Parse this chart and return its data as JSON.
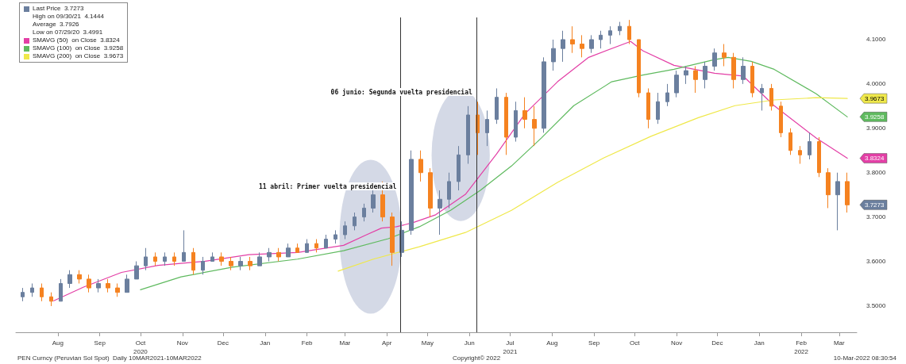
{
  "chart_data": {
    "type": "candlestick",
    "series": [
      {
        "type": "candlestick",
        "name": "Last Price  3.7273",
        "color": "#6b7f9e",
        "x": [
          "2020-07-06",
          "2020-07-13",
          "2020-07-20",
          "2020-07-27",
          "2020-08-03",
          "2020-08-10",
          "2020-08-17",
          "2020-08-24",
          "2020-08-31",
          "2020-09-07",
          "2020-09-14",
          "2020-09-21",
          "2020-09-28",
          "2020-10-05",
          "2020-10-12",
          "2020-10-19",
          "2020-10-26",
          "2020-11-02",
          "2020-11-09",
          "2020-11-16",
          "2020-11-23",
          "2020-11-30",
          "2020-12-07",
          "2020-12-14",
          "2020-12-21",
          "2020-12-28",
          "2021-01-04",
          "2021-01-11",
          "2021-01-18",
          "2021-01-25",
          "2021-02-01",
          "2021-02-08",
          "2021-02-15",
          "2021-02-22",
          "2021-03-01",
          "2021-03-08",
          "2021-03-15",
          "2021-03-22",
          "2021-03-29",
          "2021-04-05",
          "2021-04-12",
          "2021-04-19",
          "2021-04-26",
          "2021-05-03",
          "2021-05-10",
          "2021-05-17",
          "2021-05-24",
          "2021-05-31",
          "2021-06-07",
          "2021-06-14",
          "2021-06-21",
          "2021-06-28",
          "2021-07-05",
          "2021-07-12",
          "2021-07-19",
          "2021-07-26",
          "2021-08-02",
          "2021-08-09",
          "2021-08-16",
          "2021-08-23",
          "2021-08-30",
          "2021-09-06",
          "2021-09-13",
          "2021-09-20",
          "2021-09-27",
          "2021-10-04",
          "2021-10-11",
          "2021-10-18",
          "2021-10-25",
          "2021-11-01",
          "2021-11-08",
          "2021-11-15",
          "2021-11-22",
          "2021-11-29",
          "2021-12-06",
          "2021-12-13",
          "2021-12-20",
          "2021-12-27",
          "2022-01-03",
          "2022-01-10",
          "2022-01-17",
          "2022-01-24",
          "2022-01-31",
          "2022-02-07",
          "2022-02-14",
          "2022-02-21",
          "2022-02-28",
          "2022-03-07"
        ],
        "ohlc": [
          [
            3.52,
            3.54,
            3.51,
            3.53
          ],
          [
            3.53,
            3.55,
            3.52,
            3.54
          ],
          [
            3.54,
            3.55,
            3.51,
            3.52
          ],
          [
            3.52,
            3.53,
            3.4991,
            3.51
          ],
          [
            3.51,
            3.56,
            3.51,
            3.55
          ],
          [
            3.55,
            3.58,
            3.54,
            3.57
          ],
          [
            3.57,
            3.58,
            3.55,
            3.56
          ],
          [
            3.56,
            3.57,
            3.53,
            3.54
          ],
          [
            3.54,
            3.56,
            3.53,
            3.55
          ],
          [
            3.55,
            3.56,
            3.53,
            3.54
          ],
          [
            3.54,
            3.55,
            3.52,
            3.53
          ],
          [
            3.53,
            3.57,
            3.53,
            3.56
          ],
          [
            3.56,
            3.6,
            3.56,
            3.59
          ],
          [
            3.59,
            3.63,
            3.58,
            3.61
          ],
          [
            3.61,
            3.62,
            3.59,
            3.6
          ],
          [
            3.6,
            3.62,
            3.59,
            3.61
          ],
          [
            3.61,
            3.62,
            3.59,
            3.6
          ],
          [
            3.6,
            3.67,
            3.6,
            3.62
          ],
          [
            3.62,
            3.63,
            3.57,
            3.58
          ],
          [
            3.58,
            3.61,
            3.57,
            3.6
          ],
          [
            3.6,
            3.62,
            3.6,
            3.61
          ],
          [
            3.61,
            3.62,
            3.59,
            3.6
          ],
          [
            3.6,
            3.61,
            3.58,
            3.59
          ],
          [
            3.59,
            3.61,
            3.58,
            3.6
          ],
          [
            3.6,
            3.61,
            3.58,
            3.59
          ],
          [
            3.59,
            3.62,
            3.59,
            3.61
          ],
          [
            3.61,
            3.63,
            3.6,
            3.62
          ],
          [
            3.62,
            3.63,
            3.6,
            3.61
          ],
          [
            3.61,
            3.64,
            3.61,
            3.63
          ],
          [
            3.63,
            3.64,
            3.62,
            3.62
          ],
          [
            3.62,
            3.65,
            3.62,
            3.64
          ],
          [
            3.64,
            3.65,
            3.62,
            3.63
          ],
          [
            3.63,
            3.66,
            3.63,
            3.65
          ],
          [
            3.65,
            3.67,
            3.64,
            3.66
          ],
          [
            3.66,
            3.69,
            3.65,
            3.68
          ],
          [
            3.68,
            3.71,
            3.67,
            3.7
          ],
          [
            3.7,
            3.73,
            3.69,
            3.72
          ],
          [
            3.72,
            3.76,
            3.71,
            3.75
          ],
          [
            3.75,
            3.78,
            3.69,
            3.7
          ],
          [
            3.7,
            3.71,
            3.59,
            3.62
          ],
          [
            3.62,
            3.69,
            3.61,
            3.67
          ],
          [
            3.67,
            3.85,
            3.66,
            3.83
          ],
          [
            3.83,
            3.85,
            3.78,
            3.8
          ],
          [
            3.8,
            3.81,
            3.7,
            3.72
          ],
          [
            3.72,
            3.76,
            3.66,
            3.74
          ],
          [
            3.74,
            3.8,
            3.72,
            3.78
          ],
          [
            3.78,
            3.86,
            3.76,
            3.84
          ],
          [
            3.84,
            3.95,
            3.82,
            3.93
          ],
          [
            3.93,
            3.96,
            3.84,
            3.89
          ],
          [
            3.89,
            3.94,
            3.86,
            3.92
          ],
          [
            3.92,
            3.99,
            3.91,
            3.97
          ],
          [
            3.97,
            3.98,
            3.84,
            3.88
          ],
          [
            3.88,
            3.96,
            3.87,
            3.94
          ],
          [
            3.94,
            3.97,
            3.9,
            3.92
          ],
          [
            3.92,
            3.95,
            3.86,
            3.9
          ],
          [
            3.9,
            4.06,
            3.89,
            4.05
          ],
          [
            4.05,
            4.1,
            4.03,
            4.08
          ],
          [
            4.08,
            4.12,
            4.05,
            4.1
          ],
          [
            4.1,
            4.13,
            4.07,
            4.09
          ],
          [
            4.09,
            4.11,
            4.06,
            4.08
          ],
          [
            4.08,
            4.11,
            4.07,
            4.1
          ],
          [
            4.1,
            4.12,
            4.08,
            4.11
          ],
          [
            4.11,
            4.13,
            4.09,
            4.12
          ],
          [
            4.12,
            4.14,
            4.11,
            4.13
          ],
          [
            4.13,
            4.1444,
            4.09,
            4.1
          ],
          [
            4.1,
            4.1,
            3.97,
            3.98
          ],
          [
            3.98,
            3.99,
            3.9,
            3.92
          ],
          [
            3.92,
            3.98,
            3.91,
            3.96
          ],
          [
            3.96,
            4.0,
            3.95,
            3.98
          ],
          [
            3.98,
            4.03,
            3.97,
            4.02
          ],
          [
            4.02,
            4.04,
            4.0,
            4.03
          ],
          [
            4.03,
            4.04,
            3.98,
            4.01
          ],
          [
            4.01,
            4.05,
            3.99,
            4.04
          ],
          [
            4.04,
            4.08,
            4.03,
            4.07
          ],
          [
            4.07,
            4.09,
            4.04,
            4.06
          ],
          [
            4.06,
            4.07,
            3.99,
            4.01
          ],
          [
            4.01,
            4.06,
            4.0,
            4.04
          ],
          [
            4.04,
            4.05,
            3.97,
            3.98
          ],
          [
            3.98,
            4.0,
            3.94,
            3.99
          ],
          [
            3.99,
            4.0,
            3.94,
            3.95
          ],
          [
            3.95,
            3.96,
            3.88,
            3.89
          ],
          [
            3.89,
            3.9,
            3.84,
            3.85
          ],
          [
            3.85,
            3.86,
            3.82,
            3.84
          ],
          [
            3.84,
            3.89,
            3.83,
            3.87
          ],
          [
            3.87,
            3.88,
            3.79,
            3.8
          ],
          [
            3.8,
            3.81,
            3.72,
            3.75
          ],
          [
            3.75,
            3.8,
            3.67,
            3.78
          ],
          [
            3.78,
            3.8,
            3.71,
            3.7273
          ]
        ],
        "colors": [
          "#6b7f9e",
          "#6b7f9e",
          "#f58220",
          "#f58220",
          "#6b7f9e",
          "#6b7f9e",
          "#f58220",
          "#f58220",
          "#6b7f9e",
          "#f58220",
          "#f58220",
          "#6b7f9e",
          "#6b7f9e",
          "#6b7f9e",
          "#f58220",
          "#6b7f9e",
          "#f58220",
          "#6b7f9e",
          "#f58220",
          "#6b7f9e",
          "#6b7f9e",
          "#f58220",
          "#f58220",
          "#6b7f9e",
          "#f58220",
          "#6b7f9e",
          "#6b7f9e",
          "#f58220",
          "#6b7f9e",
          "#f58220",
          "#6b7f9e",
          "#f58220",
          "#6b7f9e",
          "#6b7f9e",
          "#6b7f9e",
          "#6b7f9e",
          "#6b7f9e",
          "#6b7f9e",
          "#f58220",
          "#f58220",
          "#6b7f9e",
          "#6b7f9e",
          "#f58220",
          "#f58220",
          "#6b7f9e",
          "#6b7f9e",
          "#6b7f9e",
          "#6b7f9e",
          "#f58220",
          "#6b7f9e",
          "#6b7f9e",
          "#f58220",
          "#6b7f9e",
          "#f58220",
          "#f58220",
          "#6b7f9e",
          "#6b7f9e",
          "#6b7f9e",
          "#f58220",
          "#f58220",
          "#6b7f9e",
          "#6b7f9e",
          "#6b7f9e",
          "#6b7f9e",
          "#f58220",
          "#f58220",
          "#f58220",
          "#6b7f9e",
          "#6b7f9e",
          "#6b7f9e",
          "#6b7f9e",
          "#f58220",
          "#6b7f9e",
          "#6b7f9e",
          "#f58220",
          "#f58220",
          "#6b7f9e",
          "#f58220",
          "#6b7f9e",
          "#f58220",
          "#f58220",
          "#f58220",
          "#f58220",
          "#6b7f9e",
          "#f58220",
          "#f58220",
          "#6b7f9e",
          "#f58220"
        ]
      },
      {
        "type": "line",
        "name": "SMAVG (50)  on Close  3.8324",
        "color": "#e33fa6",
        "x": [
          "2020-07-29",
          "2020-08-20",
          "2020-09-17",
          "2020-10-14",
          "2020-11-17",
          "2020-12-20",
          "2021-01-25",
          "2021-02-28",
          "2021-03-17",
          "2021-03-28",
          "2021-04-08",
          "2021-04-20",
          "2021-05-07",
          "2021-05-29",
          "2021-06-21",
          "2021-07-12",
          "2021-08-05",
          "2021-08-28",
          "2021-09-28",
          "2021-10-07",
          "2021-10-30",
          "2021-11-29",
          "2021-12-20",
          "2022-01-12",
          "2022-02-12",
          "2022-03-07"
        ],
        "values": [
          3.511,
          3.542,
          3.575,
          3.591,
          3.6,
          3.615,
          3.62,
          3.636,
          3.66,
          3.675,
          3.678,
          3.687,
          3.705,
          3.751,
          3.842,
          3.933,
          4.005,
          4.06,
          4.096,
          4.075,
          4.042,
          4.024,
          4.018,
          3.951,
          3.878,
          3.8324
        ]
      },
      {
        "type": "line",
        "name": "SMAVG (100)  on Close  3.9258",
        "color": "#5fba5f",
        "x": [
          "2020-10-01",
          "2020-10-31",
          "2020-12-08",
          "2021-01-25",
          "2021-02-28",
          "2021-04-02",
          "2021-04-25",
          "2021-05-18",
          "2021-06-09",
          "2021-07-02",
          "2021-07-24",
          "2021-08-17",
          "2021-09-14",
          "2021-10-07",
          "2021-10-30",
          "2021-11-29",
          "2021-12-09",
          "2021-12-26",
          "2022-01-12",
          "2022-02-12",
          "2022-03-07"
        ],
        "values": [
          3.536,
          3.565,
          3.587,
          3.605,
          3.624,
          3.651,
          3.678,
          3.715,
          3.76,
          3.815,
          3.878,
          3.951,
          4.005,
          4.02,
          4.033,
          4.055,
          4.06,
          4.051,
          4.033,
          3.978,
          3.9258
        ]
      },
      {
        "type": "line",
        "name": "SMAVG (200)  on Close  3.9673",
        "color": "#efe84a",
        "x": [
          "2021-02-24",
          "2021-03-22",
          "2021-04-25",
          "2021-05-29",
          "2021-07-02",
          "2021-08-05",
          "2021-09-08",
          "2021-10-13",
          "2021-11-17",
          "2021-12-14",
          "2022-01-12",
          "2022-02-12",
          "2022-03-07"
        ],
        "values": [
          3.578,
          3.605,
          3.633,
          3.665,
          3.715,
          3.778,
          3.833,
          3.882,
          3.924,
          3.951,
          3.964,
          3.969,
          3.9673
        ]
      }
    ],
    "xlim": [
      "2020-07-01",
      "2022-03-14"
    ],
    "xticks": [
      {
        "value": "2020-08-01",
        "label": "Aug"
      },
      {
        "value": "2020-09-01",
        "label": "Sep"
      },
      {
        "value": "2020-10-01",
        "label": "Oct\n2020"
      },
      {
        "value": "2020-11-01",
        "label": "Nov"
      },
      {
        "value": "2020-12-01",
        "label": "Dec"
      },
      {
        "value": "2021-01-01",
        "label": "Jan"
      },
      {
        "value": "2021-02-01",
        "label": "Feb"
      },
      {
        "value": "2021-03-01",
        "label": "Mar"
      },
      {
        "value": "2021-04-01",
        "label": "Apr"
      },
      {
        "value": "2021-05-01",
        "label": "May"
      },
      {
        "value": "2021-06-01",
        "label": "Jun"
      },
      {
        "value": "2021-07-01",
        "label": "Jul\n2021"
      },
      {
        "value": "2021-08-01",
        "label": "Aug"
      },
      {
        "value": "2021-09-01",
        "label": "Sep"
      },
      {
        "value": "2021-10-01",
        "label": "Oct"
      },
      {
        "value": "2021-11-01",
        "label": "Nov"
      },
      {
        "value": "2021-12-01",
        "label": "Dec"
      },
      {
        "value": "2022-01-01",
        "label": "Jan"
      },
      {
        "value": "2022-02-01",
        "label": "Feb\n2022"
      },
      {
        "value": "2022-03-01",
        "label": "Mar"
      }
    ],
    "ylim": [
      3.44,
      4.15
    ],
    "yticks": [
      {
        "value": 3.5,
        "label": "3.5000"
      },
      {
        "value": 3.6,
        "label": "3.6000"
      },
      {
        "value": 3.7,
        "label": "3.7000"
      },
      {
        "value": 3.8,
        "label": "3.8000"
      },
      {
        "value": 3.9,
        "label": "3.9000"
      },
      {
        "value": 4.0,
        "label": "4.0000"
      },
      {
        "value": 4.1,
        "label": "4.1000"
      }
    ],
    "ref_lines": [
      {
        "axis": "x",
        "value": "2021-04-11",
        "label": "11 abril: Primer vuelta presidencial",
        "color": "#333333"
      },
      {
        "axis": "x",
        "value": "2021-06-06",
        "label": "06 junio: Segunda vuelta presidencial",
        "color": "#333333"
      }
    ],
    "annotations": [
      "High on 09/30/21  4.1444",
      "Average  3.7926",
      "Low on 07/29/20  3.4991",
      "PEN Curncy (Peruvian Sol Spot)  Daily 10MAR2021-10MAR2022",
      "Copyright© 2022",
      "10-Mar-2022 08:30:54",
      {
        "text": "3.9673",
        "x": "2022-03-07",
        "y": 3.9673
      },
      {
        "text": "3.9258",
        "x": "2022-03-07",
        "y": 3.9258
      },
      {
        "text": "3.8324",
        "x": "2022-03-07",
        "y": 3.8324
      },
      {
        "text": "3.7273",
        "x": "2022-03-07",
        "y": 3.7273
      }
    ],
    "legend": "top left"
  }
}
